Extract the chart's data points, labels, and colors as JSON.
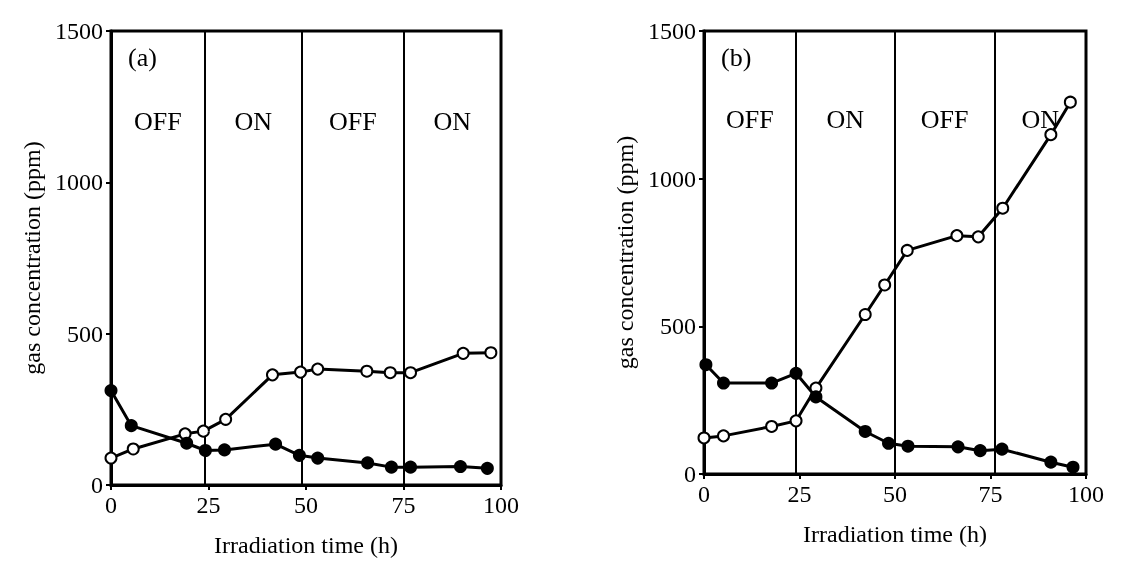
{
  "chart_data": [
    {
      "type": "line",
      "title": "(a)",
      "xlabel": "Irradiation time (h)",
      "ylabel": "gas concentration (ppm)",
      "xlim": [
        0,
        100
      ],
      "xticks": [
        0,
        25,
        50,
        75,
        100
      ],
      "ylim": [
        0,
        1500
      ],
      "yticks": [
        0,
        500,
        1000,
        1500
      ],
      "grid": false,
      "marker": "circle",
      "line_style": "solid",
      "series": [
        {
          "color": "#000000",
          "x": [
            0,
            5.7,
            19,
            23.7,
            29.4,
            41.4,
            48.6,
            53,
            65.6,
            71.6,
            76.8,
            90.3,
            97.4
          ],
          "values": [
            89,
            119,
            169,
            178,
            217,
            364,
            373,
            383,
            376,
            371,
            371,
            435,
            437
          ]
        },
        {
          "color": "#000000",
          "x": [
            0,
            5.2,
            19.4,
            24.2,
            29.1,
            42.2,
            48.3,
            53,
            65.8,
            71.9,
            76.8,
            89.6,
            96.5
          ],
          "values": [
            312,
            196,
            138,
            114,
            116,
            135,
            98,
            89,
            73,
            59,
            59,
            61,
            55
          ]
        }
      ],
      "ref_lines": [
        {
          "axis": "x",
          "value": 24,
          "color": "#000000"
        },
        {
          "axis": "x",
          "value": 49,
          "color": "#000000"
        },
        {
          "axis": "x",
          "value": 75,
          "color": "#000000"
        }
      ],
      "annotations": [
        "OFF",
        "ON",
        "OFF",
        "ON"
      ]
    },
    {
      "type": "line",
      "title": "(b)",
      "xlabel": "Irradiation time (h)",
      "ylabel": "gas concentration (ppm)",
      "xlim": [
        0,
        100
      ],
      "xticks": [
        0,
        25,
        50,
        75,
        100
      ],
      "ylim": [
        0,
        1500
      ],
      "yticks": [
        0,
        500,
        1000,
        1500
      ],
      "grid": false,
      "marker": "circle",
      "line_style": "solid",
      "series": [
        {
          "color": "#000000",
          "x": [
            0,
            5.1,
            17.7,
            24.1,
            29.3,
            42.2,
            47.3,
            53.2,
            66.2,
            71.8,
            78.2,
            90.8,
            95.9
          ],
          "values": [
            122,
            129,
            161,
            180,
            291,
            540,
            640,
            757,
            807,
            803,
            900,
            1149,
            1259
          ]
        },
        {
          "color": "#000000",
          "x": [
            0.5,
            5.1,
            17.7,
            24.1,
            29.3,
            42.2,
            48.3,
            53.4,
            66.5,
            72.3,
            78,
            90.8,
            96.6
          ],
          "values": [
            370,
            308,
            308,
            341,
            261,
            144,
            104,
            94,
            92,
            79,
            84,
            40,
            23
          ]
        }
      ],
      "ref_lines": [
        {
          "axis": "x",
          "value": 24,
          "color": "#000000"
        },
        {
          "axis": "x",
          "value": 50,
          "color": "#000000"
        },
        {
          "axis": "x",
          "value": 76,
          "color": "#000000"
        }
      ],
      "annotations": [
        "OFF",
        "ON",
        "OFF",
        "ON"
      ]
    }
  ]
}
